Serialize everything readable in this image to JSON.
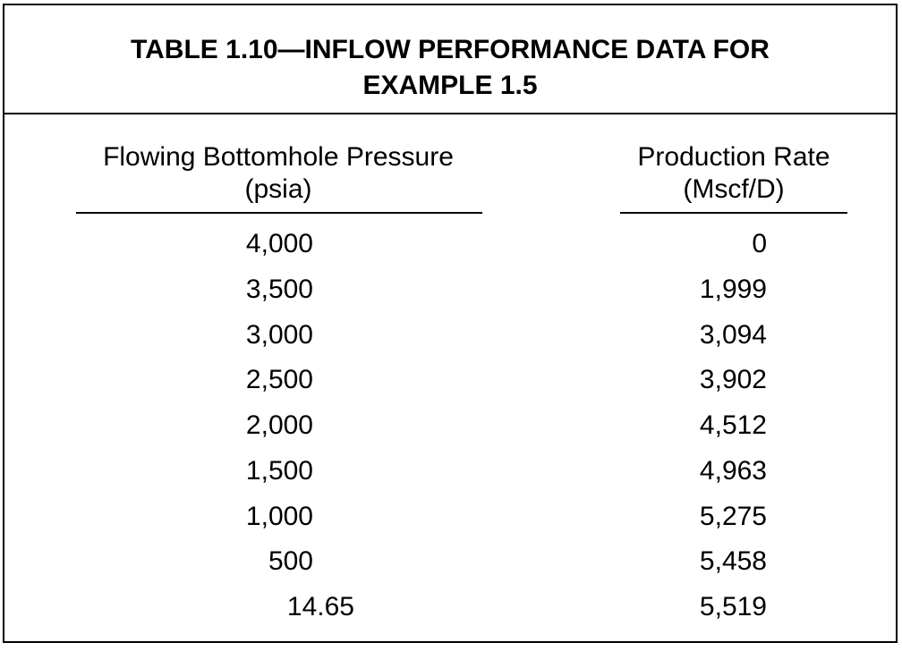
{
  "table": {
    "title_line1": "TABLE 1.10—INFLOW PERFORMANCE DATA FOR",
    "title_line2": "EXAMPLE 1.5",
    "columns": [
      {
        "header": "Flowing Bottomhole Pressure",
        "unit": "(psia)"
      },
      {
        "header": "Production Rate",
        "unit": "(Mscf/D)"
      }
    ],
    "rows": [
      {
        "pressure": "4,000",
        "rate": "0"
      },
      {
        "pressure": "3,500",
        "rate": "1,999"
      },
      {
        "pressure": "3,000",
        "rate": "3,094"
      },
      {
        "pressure": "2,500",
        "rate": "3,902"
      },
      {
        "pressure": "2,000",
        "rate": "4,512"
      },
      {
        "pressure": "1,500",
        "rate": "4,963"
      },
      {
        "pressure": "1,000",
        "rate": "5,275"
      },
      {
        "pressure": "500",
        "rate": "5,458"
      },
      {
        "pressure": "14.65",
        "rate": "5,519"
      }
    ]
  },
  "colors": {
    "text": "#000000",
    "border": "#000000",
    "background": "#ffffff"
  }
}
